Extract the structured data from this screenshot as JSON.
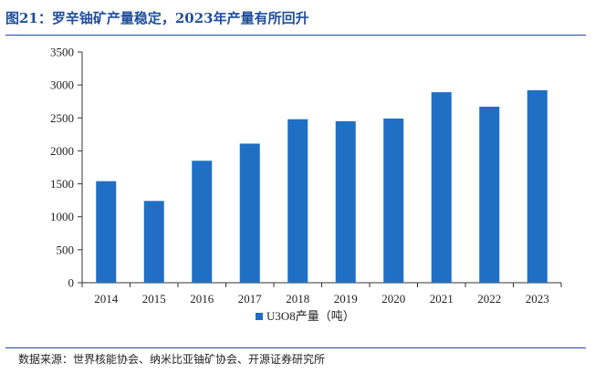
{
  "figure": {
    "title": "图21：罗辛铀矿产量稳定，2023年产量有所回升",
    "source": "数据来源：世界核能协会、纳米比亚铀矿协会、开源证券研究所"
  },
  "chart_data": {
    "type": "bar",
    "title": "",
    "xlabel": "",
    "ylabel": "",
    "categories": [
      "2014",
      "2015",
      "2016",
      "2017",
      "2018",
      "2019",
      "2020",
      "2021",
      "2022",
      "2023"
    ],
    "series": [
      {
        "name": "U3O8产量（吨）",
        "color": "#1f6fc5",
        "values": [
          1540,
          1240,
          1850,
          2110,
          2480,
          2450,
          2490,
          2890,
          2670,
          2920
        ]
      }
    ],
    "ylim": [
      0,
      3500
    ],
    "yticks": [
      0,
      500,
      1000,
      1500,
      2000,
      2500,
      3000,
      3500
    ],
    "grid": false,
    "legend": "bottom"
  }
}
